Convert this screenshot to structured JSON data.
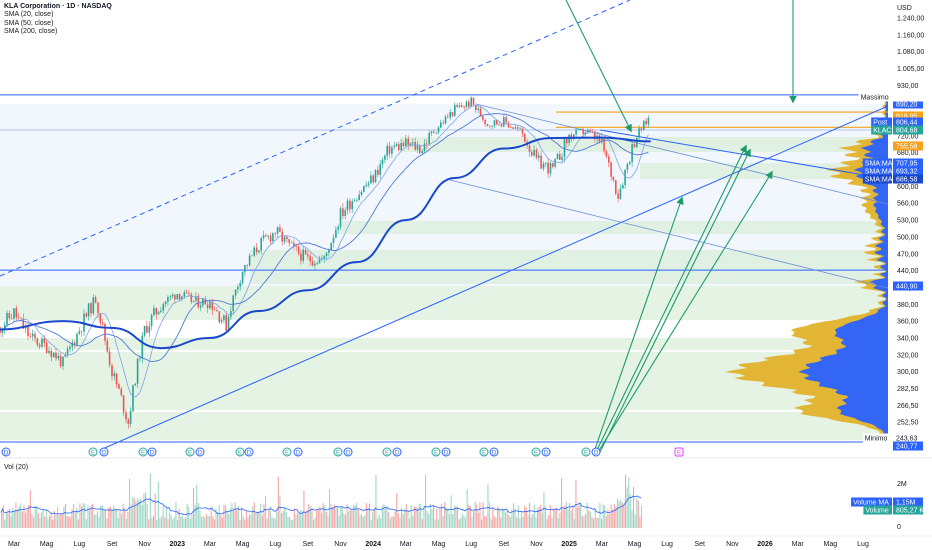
{
  "header": {
    "title": "KLA Corporation · 1D · NASDAQ",
    "currency": "USD"
  },
  "legend": [
    "SMA (20, close)",
    "SMA (50, close)",
    "SMA (200, close)"
  ],
  "volume_label": "Vol (20)",
  "colors": {
    "up": "#26a69a",
    "down": "#ef5350",
    "sma200": "#1848cc",
    "sma_thin": "#4f7bd6",
    "profile_blue": "#2962ff",
    "profile_yellow": "#e2b22a",
    "band": "#d8eed8",
    "arrow": "#1e9b6c",
    "orange": "#f7a21b"
  },
  "chart_data": {
    "type": "candlestick",
    "title": "KLA Corporation · 1D · NASDAQ",
    "currency": "USD",
    "price_axis_ticks": [
      "1.240,00",
      "1.160,00",
      "1.080,00",
      "1.005,00",
      "930,00",
      "860,00",
      "790,00",
      "720,00",
      "680,00",
      "640,00",
      "600,00",
      "560,00",
      "530,00",
      "500,00",
      "470,00",
      "440,00",
      "410,00",
      "380,00",
      "360,00",
      "340,00",
      "320,00",
      "300,00",
      "282,50",
      "266,50",
      "252,50",
      "237,00"
    ],
    "time_axis_ticks": [
      "Mar",
      "Mag",
      "Lug",
      "Set",
      "Nov",
      "2023",
      "Mar",
      "Mag",
      "Lug",
      "Set",
      "Nov",
      "2024",
      "Mar",
      "Mag",
      "Lug",
      "Set",
      "Nov",
      "2025",
      "Mar",
      "Mag",
      "Lug",
      "Set",
      "Nov",
      "2026",
      "Mar",
      "Mag",
      "Lug"
    ],
    "volume_axis_ticks": [
      "2M",
      "0"
    ],
    "series": [
      {
        "name": "SMA (20, close)"
      },
      {
        "name": "SMA (50, close)"
      },
      {
        "name": "SMA (200, close)"
      }
    ],
    "price_path": [
      {
        "date": "2022-02",
        "close": 350
      },
      {
        "date": "2022-03",
        "close": 370
      },
      {
        "date": "2022-04",
        "close": 340
      },
      {
        "date": "2022-05",
        "close": 330
      },
      {
        "date": "2022-06",
        "close": 310
      },
      {
        "date": "2022-07",
        "close": 350
      },
      {
        "date": "2022-08",
        "close": 390
      },
      {
        "date": "2022-09",
        "close": 300
      },
      {
        "date": "2022-10",
        "close": 252
      },
      {
        "date": "2022-11",
        "close": 350
      },
      {
        "date": "2022-12",
        "close": 380
      },
      {
        "date": "2023-01",
        "close": 400
      },
      {
        "date": "2023-02",
        "close": 385
      },
      {
        "date": "2023-03",
        "close": 385
      },
      {
        "date": "2023-04",
        "close": 355
      },
      {
        "date": "2023-05",
        "close": 440
      },
      {
        "date": "2023-06",
        "close": 485
      },
      {
        "date": "2023-07",
        "close": 510
      },
      {
        "date": "2023-08",
        "close": 480
      },
      {
        "date": "2023-09",
        "close": 460
      },
      {
        "date": "2023-10",
        "close": 460
      },
      {
        "date": "2023-11",
        "close": 540
      },
      {
        "date": "2023-12",
        "close": 580
      },
      {
        "date": "2024-01",
        "close": 620
      },
      {
        "date": "2024-02",
        "close": 690
      },
      {
        "date": "2024-03",
        "close": 700
      },
      {
        "date": "2024-04",
        "close": 690
      },
      {
        "date": "2024-05",
        "close": 760
      },
      {
        "date": "2024-06",
        "close": 830
      },
      {
        "date": "2024-07",
        "close": 860
      },
      {
        "date": "2024-08",
        "close": 770
      },
      {
        "date": "2024-09",
        "close": 780
      },
      {
        "date": "2024-10",
        "close": 740
      },
      {
        "date": "2024-11",
        "close": 660
      },
      {
        "date": "2024-12",
        "close": 640
      },
      {
        "date": "2025-01",
        "close": 720
      },
      {
        "date": "2025-02",
        "close": 740
      },
      {
        "date": "2025-03",
        "close": 700
      },
      {
        "date": "2025-04",
        "close": 580
      },
      {
        "date": "2025-05",
        "close": 710
      },
      {
        "date": "2025-06",
        "close": 805
      }
    ],
    "sma200_path": [
      {
        "date": "2022-02",
        "value": 350
      },
      {
        "date": "2022-06",
        "value": 360
      },
      {
        "date": "2022-09",
        "value": 352
      },
      {
        "date": "2022-12",
        "value": 328
      },
      {
        "date": "2023-03",
        "value": 340
      },
      {
        "date": "2023-06",
        "value": 372
      },
      {
        "date": "2023-09",
        "value": 405
      },
      {
        "date": "2023-12",
        "value": 455
      },
      {
        "date": "2024-03",
        "value": 530
      },
      {
        "date": "2024-06",
        "value": 620
      },
      {
        "date": "2024-09",
        "value": 690
      },
      {
        "date": "2024-12",
        "value": 715
      },
      {
        "date": "2025-03",
        "value": 716
      },
      {
        "date": "2025-06",
        "value": 707
      }
    ],
    "horizontal_levels": [
      {
        "label": "Massimo",
        "value": "890,20"
      },
      {
        "value": "440,90"
      },
      {
        "label": "Minimo",
        "value": "240,77"
      }
    ],
    "price_labels": [
      {
        "label": "",
        "value": "890,20",
        "color": "#2962ff"
      },
      {
        "label": "",
        "value": "818,95",
        "color": "#f7a21b"
      },
      {
        "label": "Post",
        "value": "806,44",
        "color": "#2962ff"
      },
      {
        "label": "KLAC",
        "value": "804,68",
        "color": "#26a69a"
      },
      {
        "label": "",
        "value": "755,58",
        "color": "#f7a21b"
      },
      {
        "label": "SMA:MA",
        "value": "707,95",
        "color": "#2962ff"
      },
      {
        "label": "SMA:MA",
        "value": "693,32",
        "color": "#2962ff"
      },
      {
        "label": "SMA:MA",
        "value": "686,58",
        "color": "#1848cc"
      },
      {
        "label": "",
        "value": "440,90",
        "color": "#2962ff"
      },
      {
        "label": "Minimo",
        "value": "243,63",
        "color": "#ffffff"
      },
      {
        "label": "",
        "value": "240,77",
        "color": "#2962ff"
      }
    ],
    "volume_labels": [
      {
        "label": "Volume MA",
        "value": "1,15M",
        "color": "#2962ff"
      },
      {
        "label": "Volume",
        "value": "805,27 K",
        "color": "#26a69a"
      }
    ],
    "earnings_markers": [
      "D",
      "E",
      "D",
      "E",
      "D",
      "E",
      "D",
      "E",
      "D",
      "E",
      "D",
      "E",
      "D",
      "E",
      "D",
      "E",
      "D",
      "E",
      "D",
      "E",
      "D",
      "E",
      "D",
      "E"
    ],
    "future_marker": "E",
    "grid": false
  }
}
